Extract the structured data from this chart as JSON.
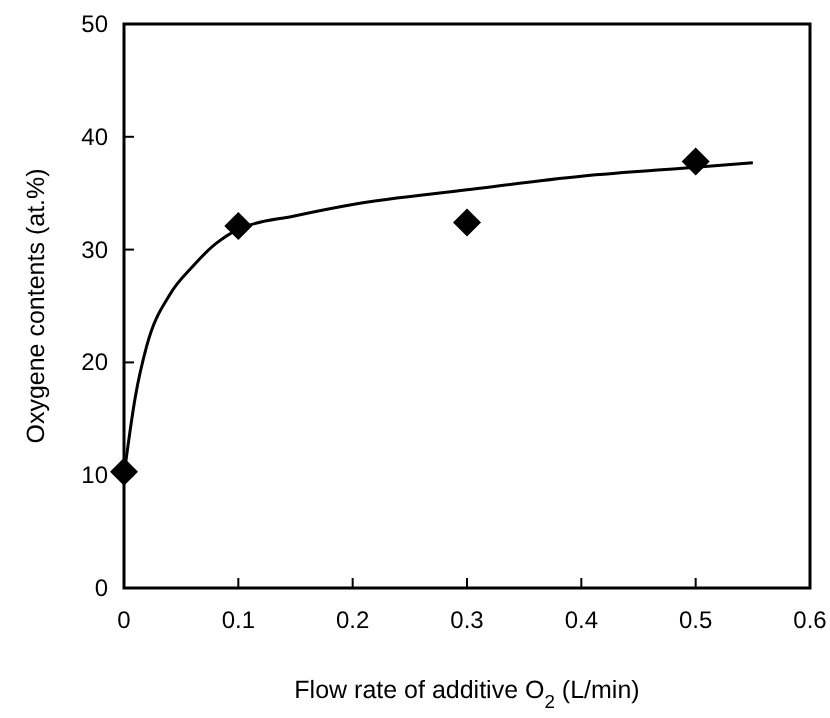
{
  "chart_data": {
    "type": "scatter",
    "xlabel": "Flow rate of additive O$_{2}$ (L/min)",
    "ylabel": "Oxygene contents (at.%)",
    "xlim": [
      0,
      0.6
    ],
    "xticks": [
      0,
      0.1,
      0.2,
      0.3,
      0.4,
      0.5,
      0.6
    ],
    "ylim": [
      0,
      50
    ],
    "yticks": [
      0,
      10,
      20,
      30,
      40,
      50
    ],
    "grid": false,
    "series": [
      {
        "color": "#000000",
        "marker": "diamond",
        "x": [
          0,
          0.1,
          0.3,
          0.5
        ],
        "values": [
          10.3,
          32.1,
          32.4,
          37.8
        ]
      },
      {
        "type": "line",
        "color": "#000000",
        "marker": "none",
        "line_style": "solid",
        "x": [
          0,
          0.01,
          0.02,
          0.04,
          0.06,
          0.08,
          0.1,
          0.15,
          0.2,
          0.3,
          0.4,
          0.5,
          0.55
        ],
        "values": [
          10,
          17,
          21.5,
          26,
          28.5,
          30.5,
          31.8,
          33,
          34,
          35.3,
          36.5,
          37.3,
          37.7
        ]
      }
    ]
  }
}
